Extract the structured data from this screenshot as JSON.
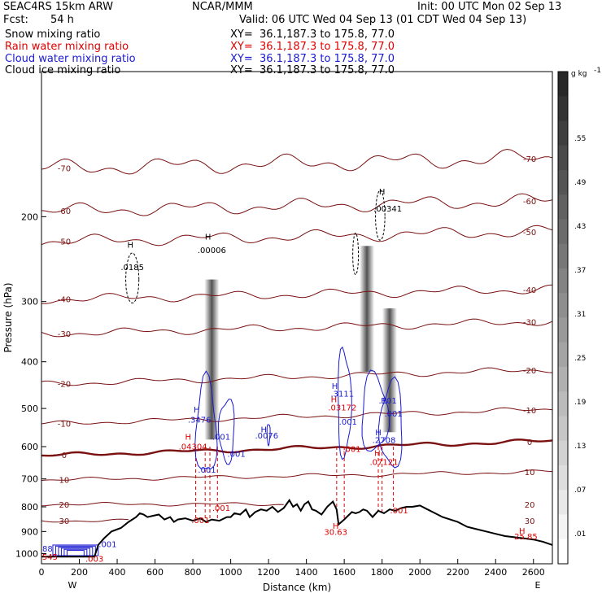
{
  "header": {
    "model": "SEAC4RS 15km ARW",
    "center": "NCAR/MMM",
    "init": "Init: 00 UTC Mon 02 Sep 13",
    "fcst_label": "Fcst:",
    "fcst_value": "54 h",
    "valid": "Valid: 06 UTC Wed 04 Sep 13 (01 CDT Wed 04 Sep 13)",
    "fields": [
      {
        "name": "Snow mixing ratio",
        "xy": "XY=  36.1,187.3 to 175.8, 77.0",
        "color": "#000000"
      },
      {
        "name": "Rain water mixing ratio",
        "xy": "XY=  36.1,187.3 to 175.8, 77.0",
        "color": "#e00000"
      },
      {
        "name": "Cloud water mixing ratio",
        "xy": "XY=  36.1,187.3 to 175.8, 77.0",
        "color": "#1a1ad0"
      },
      {
        "name": "Cloud ice mixing ratio",
        "xy": "XY=  36.1,187.3 to 175.8, 77.0",
        "color": "#000000"
      }
    ]
  },
  "colors": {
    "temperature": "#7a1010",
    "freezing": "#7a1010",
    "terrain": "#000000",
    "rain": "#e00000",
    "cloud": "#1a1ad0"
  },
  "chart_data": {
    "type": "line",
    "title": "",
    "xlabel": "Distance (km)",
    "ylabel": "Pressure (hPa)",
    "xlim": [
      0,
      2700
    ],
    "ylim": [
      1050,
      100
    ],
    "y_scale": "log",
    "x_ticks": [
      0,
      200,
      400,
      600,
      800,
      1000,
      1200,
      1400,
      1600,
      1800,
      2000,
      2200,
      2400,
      2600
    ],
    "y_ticks": [
      200,
      300,
      400,
      500,
      600,
      700,
      800,
      900,
      1000
    ],
    "x_end_labels": {
      "left": "W",
      "right": "E"
    },
    "terrain_surface_pressure": {
      "x": [
        0,
        280,
        300,
        330,
        370,
        420,
        460,
        500,
        520,
        540,
        560,
        590,
        620,
        650,
        680,
        700,
        720,
        760,
        800,
        840,
        870,
        900,
        940,
        980,
        1000,
        1020,
        1050,
        1080,
        1100,
        1130,
        1160,
        1190,
        1220,
        1250,
        1280,
        1310,
        1330,
        1350,
        1370,
        1390,
        1410,
        1430,
        1450,
        1480,
        1510,
        1540,
        1560,
        1570,
        1600,
        1640,
        1660,
        1680,
        1700,
        1720,
        1750,
        1780,
        1810,
        1840,
        1870,
        1900,
        1930,
        1960,
        2000,
        2040,
        2080,
        2120,
        2160,
        2200,
        2250,
        2300,
        2350,
        2400,
        2450,
        2500,
        2550,
        2600,
        2650,
        2700
      ],
      "p": [
        1015,
        1015,
        960,
        930,
        900,
        885,
        860,
        840,
        825,
        830,
        840,
        835,
        830,
        850,
        840,
        860,
        850,
        845,
        855,
        845,
        860,
        850,
        855,
        840,
        840,
        825,
        830,
        810,
        840,
        820,
        810,
        815,
        800,
        820,
        805,
        775,
        800,
        790,
        815,
        790,
        780,
        810,
        815,
        830,
        800,
        780,
        810,
        870,
        850,
        820,
        825,
        820,
        810,
        815,
        840,
        815,
        825,
        810,
        815,
        805,
        800,
        800,
        795,
        810,
        825,
        840,
        850,
        860,
        880,
        890,
        900,
        910,
        920,
        925,
        930,
        935,
        945,
        960
      ]
    },
    "temperature_contours": [
      {
        "label": "30",
        "p": 855,
        "slope": 0.0
      },
      {
        "label": "20",
        "p": 790,
        "slope": 0.0
      },
      {
        "label": "10",
        "p": 690,
        "slope": 0.04
      },
      {
        "label": "0",
        "p": 605,
        "slope": 0.07
      },
      {
        "label": "-10",
        "p": 520,
        "slope": 0.07
      },
      {
        "label": "-20",
        "p": 430,
        "slope": 0.07
      },
      {
        "label": "-30",
        "p": 340,
        "slope": 0.06
      },
      {
        "label": "-40",
        "p": 290,
        "slope": 0.05
      },
      {
        "label": "-50",
        "p": 220,
        "slope": 0.05
      },
      {
        "label": "-60",
        "p": 190,
        "slope": 0.05
      },
      {
        "label": "-70",
        "p": 155,
        "slope": 0.05
      }
    ],
    "ice_plumes": [
      {
        "x": 900,
        "p_top": 270,
        "p_bottom": 580
      },
      {
        "x": 1720,
        "p_top": 230,
        "p_bottom": 420
      },
      {
        "x": 1840,
        "p_top": 310,
        "p_bottom": 560
      }
    ],
    "rain_shafts_x": [
      815,
      865,
      890,
      930,
      1560,
      1600,
      1780,
      1800,
      1860
    ],
    "annotations": [
      {
        "text": "H",
        "x": 470,
        "p": 232,
        "color": "black"
      },
      {
        "text": ".0185",
        "x": 480,
        "p": 258,
        "color": "black"
      },
      {
        "text": "H",
        "x": 880,
        "p": 223,
        "color": "black"
      },
      {
        "text": ".00006",
        "x": 900,
        "p": 238,
        "color": "black"
      },
      {
        "text": "H",
        "x": 1800,
        "p": 180,
        "color": "black"
      },
      {
        "text": ".00341",
        "x": 1830,
        "p": 195,
        "color": "black"
      },
      {
        "text": "H",
        "x": 820,
        "p": 510,
        "color": "blue"
      },
      {
        "text": ".3476",
        "x": 835,
        "p": 535,
        "color": "blue"
      },
      {
        "text": "H",
        "x": 775,
        "p": 580,
        "color": "red"
      },
      {
        "text": ".04304",
        "x": 800,
        "p": 608,
        "color": "red"
      },
      {
        "text": ".001",
        "x": 950,
        "p": 580,
        "color": "blue"
      },
      {
        "text": ".001",
        "x": 1030,
        "p": 630,
        "color": "blue"
      },
      {
        "text": ".001",
        "x": 875,
        "p": 680,
        "color": "blue"
      },
      {
        "text": "H",
        "x": 1175,
        "p": 560,
        "color": "blue"
      },
      {
        "text": ".0076",
        "x": 1190,
        "p": 577,
        "color": "blue"
      },
      {
        "text": ".001",
        "x": 950,
        "p": 815,
        "color": "red"
      },
      {
        "text": ".001",
        "x": 840,
        "p": 865,
        "color": "red"
      },
      {
        "text": "H",
        "x": 1550,
        "p": 455,
        "color": "blue"
      },
      {
        "text": ".3111",
        "x": 1590,
        "p": 472,
        "color": "blue"
      },
      {
        "text": "H",
        "x": 1545,
        "p": 485,
        "color": "red"
      },
      {
        "text": ".03172",
        "x": 1590,
        "p": 505,
        "color": "red"
      },
      {
        "text": ".001",
        "x": 1620,
        "p": 540,
        "color": "blue"
      },
      {
        "text": ".001",
        "x": 1640,
        "p": 615,
        "color": "red"
      },
      {
        "text": "H",
        "x": 1555,
        "p": 888,
        "color": "red"
      },
      {
        "text": "30.63",
        "x": 1555,
        "p": 915,
        "color": "red"
      },
      {
        "text": "H",
        "x": 1810,
        "p": 488,
        "color": "blue"
      },
      {
        "text": ".101",
        "x": 1830,
        "p": 488,
        "color": "blue"
      },
      {
        "text": ".001",
        "x": 1860,
        "p": 520,
        "color": "blue"
      },
      {
        "text": "H",
        "x": 1780,
        "p": 568,
        "color": "blue"
      },
      {
        "text": ".2708",
        "x": 1810,
        "p": 590,
        "color": "blue"
      },
      {
        "text": "H",
        "x": 1775,
        "p": 628,
        "color": "red"
      },
      {
        "text": ".07121",
        "x": 1810,
        "p": 655,
        "color": "red"
      },
      {
        "text": ".001",
        "x": 1890,
        "p": 825,
        "color": "red"
      },
      {
        "text": "H",
        "x": 2540,
        "p": 910,
        "color": "red"
      },
      {
        "text": "25.85",
        "x": 2560,
        "p": 935,
        "color": "red"
      },
      {
        "text": ".001",
        "x": 350,
        "p": 970,
        "color": "blue"
      },
      {
        "text": ".88",
        "x": 25,
        "p": 990,
        "color": "blue"
      },
      {
        "text": "545",
        "x": 45,
        "p": 1030,
        "color": "red"
      },
      {
        "text": ".003",
        "x": 280,
        "p": 1040,
        "color": "red"
      }
    ],
    "colorbar": {
      "unit": "g kg",
      "unit_exp": "-1",
      "ticks": [
        ".55",
        ".49",
        ".43",
        ".37",
        ".31",
        ".25",
        ".19",
        ".13",
        ".07",
        ".01"
      ]
    }
  }
}
